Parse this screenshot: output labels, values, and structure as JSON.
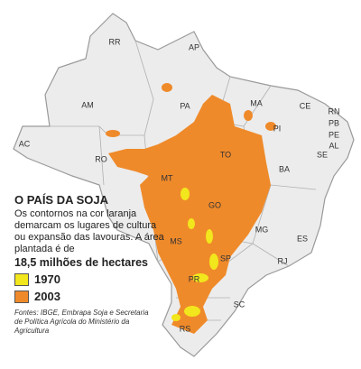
{
  "map": {
    "states": [
      "RR",
      "AP",
      "AM",
      "PA",
      "MA",
      "CE",
      "RN",
      "PB",
      "PE",
      "AL",
      "SE",
      "PI",
      "AC",
      "RO",
      "TO",
      "BA",
      "MT",
      "GO",
      "MG",
      "ES",
      "RJ",
      "MS",
      "SP",
      "PR",
      "SC",
      "RS"
    ],
    "infobox": {
      "title": "O PAÍS DA SOJA",
      "description": "Os contornos na cor laranja demarcam os lugares de cultura ou expansão das lavouras. A área plantada é de",
      "highlight": "18,5 milhões de hectares",
      "legend": [
        {
          "label": "1970",
          "color": "#f2e61c"
        },
        {
          "label": "2003",
          "color": "#ef8a2a"
        }
      ],
      "source": "Fontes: IBGE, Embrapa Soja e Secretaria de Política Agrícola do Ministério da Agricultura"
    }
  }
}
